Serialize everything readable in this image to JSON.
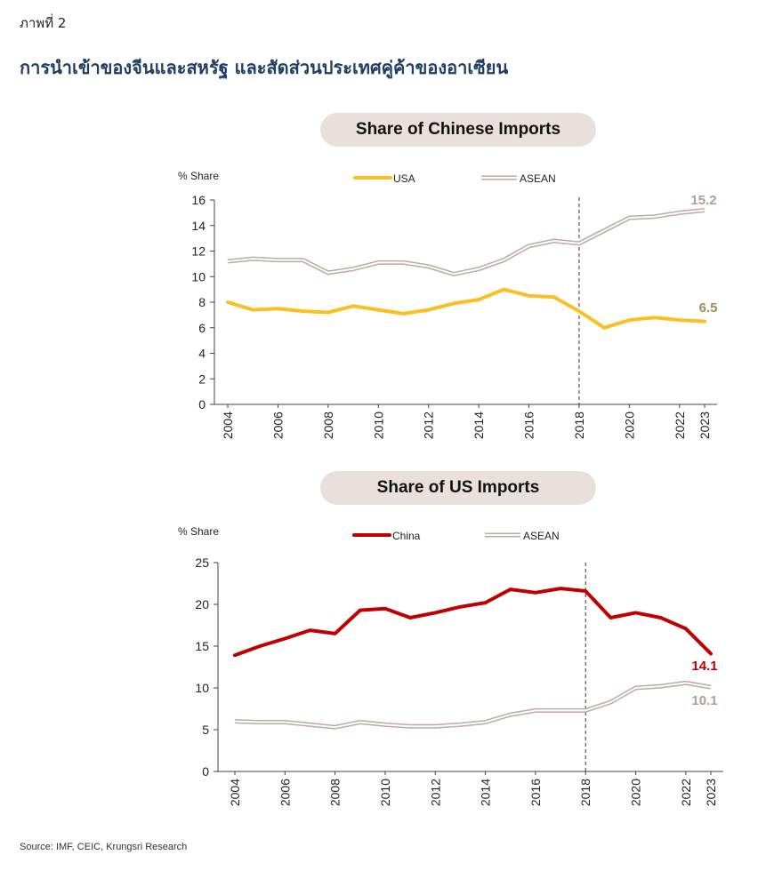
{
  "figure_label": "ภาพที่ 2",
  "figure_title": "การนำเข้าของจีนและสหรัฐ และสัดส่วนประเทศคู่ค้าของอาเซียน",
  "source": "Source: IMF, CEIC, Krungsri Research",
  "colors": {
    "usa": "#f9bf23",
    "china": "#c00000",
    "asean": "#bfa9a4",
    "asean_label": "#b49b96",
    "usa_label": "#9c8e5d"
  },
  "chart_data": [
    {
      "type": "line",
      "title": "Share of Chinese Imports",
      "ylabel": "% Share",
      "ylim": [
        0,
        16
      ],
      "yticks": [
        0,
        2,
        4,
        6,
        8,
        10,
        12,
        14,
        16
      ],
      "xticks": [
        2004,
        2006,
        2008,
        2010,
        2012,
        2014,
        2016,
        2018,
        2020,
        2022,
        2023
      ],
      "x": [
        2004,
        2005,
        2006,
        2007,
        2008,
        2009,
        2010,
        2011,
        2012,
        2013,
        2014,
        2015,
        2016,
        2017,
        2018,
        2019,
        2020,
        2021,
        2022,
        2023
      ],
      "vline": 2018,
      "legend": "top",
      "series": [
        {
          "name": "USA",
          "style": "solid",
          "color": "#f9bf23",
          "values": [
            8.0,
            7.4,
            7.5,
            7.3,
            7.2,
            7.7,
            7.4,
            7.1,
            7.4,
            7.9,
            8.2,
            9.0,
            8.5,
            8.4,
            7.3,
            6.0,
            6.6,
            6.8,
            6.6,
            6.5
          ],
          "end_label": "6.5"
        },
        {
          "name": "ASEAN",
          "style": "hollow",
          "color": "#bfa9a4",
          "values": [
            11.2,
            11.4,
            11.3,
            11.3,
            10.3,
            10.6,
            11.1,
            11.1,
            10.8,
            10.2,
            10.6,
            11.3,
            12.4,
            12.8,
            12.6,
            13.6,
            14.6,
            14.7,
            15.0,
            15.2
          ],
          "end_label": "15.2"
        }
      ]
    },
    {
      "type": "line",
      "title": "Share of US Imports",
      "ylabel": "% Share",
      "ylim": [
        0,
        25
      ],
      "yticks": [
        0,
        5,
        10,
        15,
        20,
        25
      ],
      "xticks": [
        2004,
        2006,
        2008,
        2010,
        2012,
        2014,
        2016,
        2018,
        2020,
        2022,
        2023
      ],
      "x": [
        2004,
        2005,
        2006,
        2007,
        2008,
        2009,
        2010,
        2011,
        2012,
        2013,
        2014,
        2015,
        2016,
        2017,
        2018,
        2019,
        2020,
        2021,
        2022,
        2023
      ],
      "vline": 2018,
      "legend": "top",
      "series": [
        {
          "name": "China",
          "style": "solid",
          "color": "#c00000",
          "values": [
            13.9,
            15.0,
            15.9,
            16.9,
            16.5,
            19.3,
            19.5,
            18.4,
            19.0,
            19.7,
            20.2,
            21.8,
            21.4,
            21.9,
            21.6,
            18.4,
            19.0,
            18.4,
            17.1,
            14.1
          ],
          "end_label": "14.1"
        },
        {
          "name": "ASEAN",
          "style": "hollow",
          "color": "#bfa9a4",
          "values": [
            6.0,
            5.9,
            5.9,
            5.6,
            5.3,
            5.9,
            5.6,
            5.4,
            5.4,
            5.6,
            5.9,
            6.8,
            7.3,
            7.3,
            7.3,
            8.3,
            10.0,
            10.2,
            10.6,
            10.1
          ],
          "end_label": "10.1"
        }
      ]
    }
  ]
}
